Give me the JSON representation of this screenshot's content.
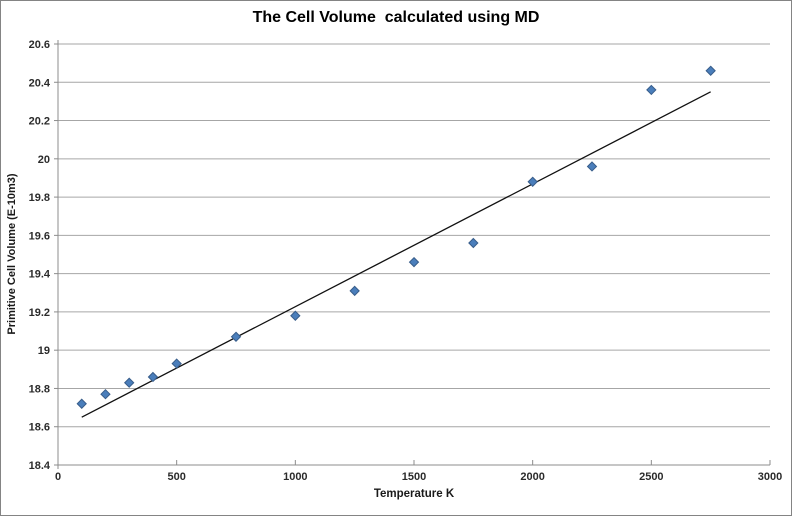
{
  "chart_data": {
    "type": "scatter",
    "title": "The Cell Volume  calculated using MD",
    "xlabel": "Temperature K",
    "ylabel": "Primitive Cell Volume (E-10m3)",
    "xlim": [
      0,
      3000
    ],
    "ylim": [
      18.4,
      20.6
    ],
    "x_tick_values": [
      0,
      500,
      1000,
      1500,
      2000,
      2500,
      3000
    ],
    "x_tick_labels": [
      "0",
      "500",
      "1000",
      "1500",
      "2000",
      "2500",
      "3000"
    ],
    "y_tick_values": [
      18.4,
      18.6,
      18.8,
      19.0,
      19.2,
      19.4,
      19.6,
      19.8,
      20.0,
      20.2,
      20.4,
      20.6
    ],
    "y_tick_labels": [
      "18.4",
      "18.6",
      "18.8",
      "19",
      "19.2",
      "19.4",
      "19.6",
      "19.8",
      "20",
      "20.2",
      "20.4",
      "20.6"
    ],
    "grid": "horizontal-only",
    "legend": "none",
    "points": {
      "marker": "diamond",
      "x": [
        100,
        200,
        300,
        400,
        500,
        750,
        1000,
        1250,
        1500,
        1750,
        2000,
        2250,
        2500,
        2750
      ],
      "y": [
        18.72,
        18.77,
        18.83,
        18.86,
        18.93,
        19.07,
        19.18,
        19.31,
        19.46,
        19.56,
        19.88,
        19.96,
        20.36,
        20.46
      ]
    },
    "trendline": {
      "shape": "straight-line",
      "x": [
        100,
        2750
      ],
      "y": [
        18.65,
        20.35
      ]
    },
    "colors": {
      "marker_fill": "#4a7ebb",
      "marker_border": "#385d8a",
      "trendline": "#111111",
      "gridline": "#a6a6a6",
      "axis_line": "#8c8c8c",
      "tick_label": "#2b2b2b",
      "title": "#000000",
      "background": "#ffffff",
      "frame_border": "#848484"
    }
  }
}
